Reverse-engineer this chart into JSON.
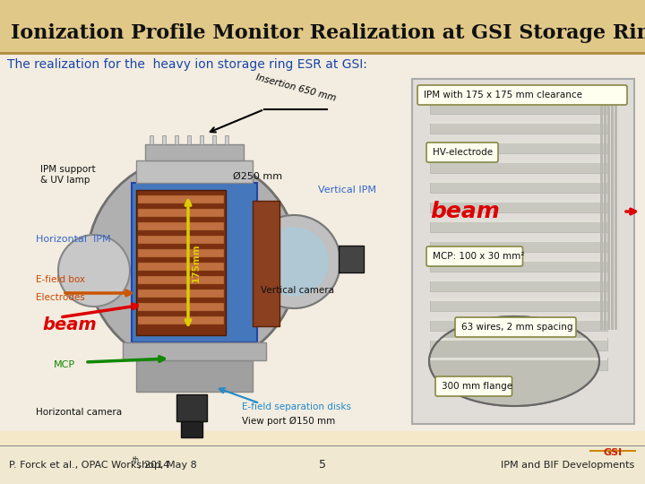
{
  "title": "Ionization Profile Monitor Realization at GSI Storage Ring",
  "subtitle": "The realization for the  heavy ion storage ring ESR at GSI:",
  "footer_left": "P. Forck et al., OPAC Workshop, May 8",
  "footer_left_super": "th",
  "footer_left_end": ", 2014",
  "footer_center": "5",
  "footer_right": "IPM and BIF Developments",
  "bg_color": "#f5e8c8",
  "title_bg": "#e8d090",
  "main_bg": "#f0ece0",
  "footer_bg": "#f0e8d0",
  "title_color": "#111111",
  "subtitle_color": "#1a44aa",
  "labels": {
    "insertion": "Insertion 650 mm",
    "ipm_support": "IPM support\n& UV lamp",
    "diameter": "Ø250 mm",
    "horizontal_ipm": "Horizontal  IPM",
    "vertical_ipm": "Vertical IPM",
    "efield_box": "E-field box",
    "electrodes": "Electrodes",
    "beam_left": "beam",
    "mcp_left": "MCP",
    "dim_175": "175mm",
    "vertical_camera": "Vertical camera",
    "efield_sep": "E-field separation disks",
    "viewport": "View port Ø150 mm",
    "horiz_camera": "Horizontal camera",
    "right_title": "IPM with 175 x 175 mm clearance",
    "hv_electrode": "HV-electrode",
    "beam_right": "beam",
    "mcp_right": "MCP: 100 x 30 mm²",
    "wires": "63 wires, 2 mm spacing",
    "flange": "300 mm flange"
  },
  "lc": {
    "insertion": "#000000",
    "ipm_support": "#111111",
    "diameter": "#111111",
    "horizontal_ipm": "#3366cc",
    "vertical_ipm": "#3366cc",
    "efield_box": "#cc4400",
    "electrodes": "#cc4400",
    "beam_left": "#dd0000",
    "mcp_left": "#118800",
    "dim_175": "#ddcc00",
    "vertical_camera": "#111111",
    "efield_sep": "#2288cc",
    "viewport": "#111111",
    "horiz_camera": "#111111",
    "right_title": "#111111",
    "hv_electrode": "#111111",
    "beam_right": "#dd0000",
    "mcp_right": "#111111",
    "wires": "#111111",
    "flange": "#111111"
  }
}
